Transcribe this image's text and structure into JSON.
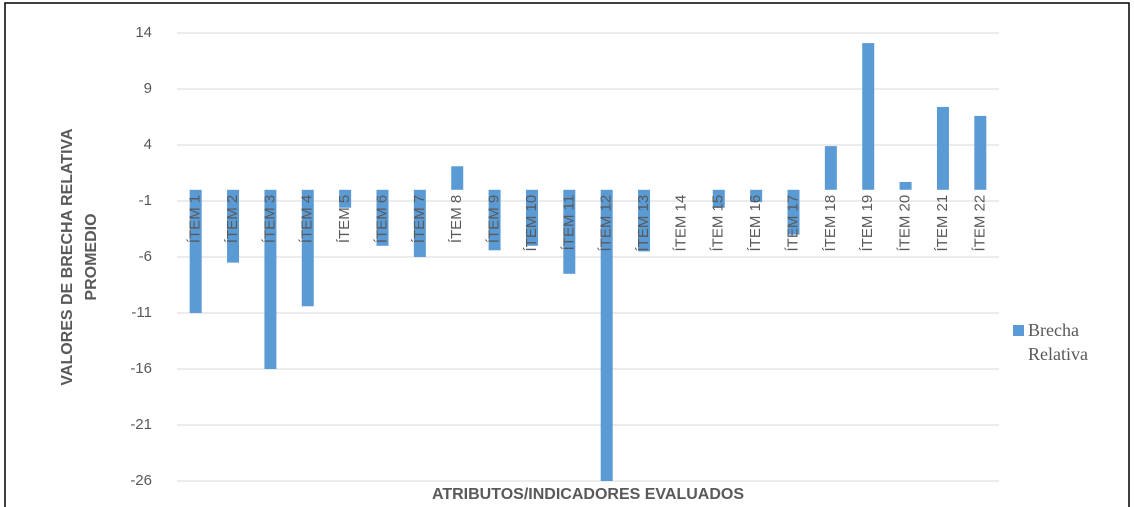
{
  "chart_data": {
    "type": "bar",
    "xlabel": "ATRIBUTOS/INDICADORES EVALUADOS",
    "ylabel": [
      "VALORES DE BRECHA RELATIVA",
      "PROMEDIO"
    ],
    "categories": [
      "ÍTEM 1",
      "ÍTEM 2",
      "ÍTEM 3",
      "ÍTEM 4",
      "ÍTEM 5",
      "ÍTEM 6",
      "ÍTEM 7",
      "ÍTEM 8",
      "ÍTEM 9",
      "ÍTEM 10",
      "ÍTEM 11",
      "ÍTEM 12",
      "ÍTEM 13",
      "ÍTEM 14",
      "ÍTEM 15",
      "ÍTEM 16",
      "ÍTEM 17",
      "ÍTEM 18",
      "ÍTEM 19",
      "ÍTEM 20",
      "ÍTEM 21",
      "ÍTEM 22"
    ],
    "series": [
      {
        "name": "Brecha Relativa",
        "color": "#5b9bd5",
        "values": [
          -11,
          -6.5,
          -16,
          -10.4,
          -1.6,
          -5,
          -6,
          2.1,
          -5.4,
          -5,
          -7.5,
          -26,
          -5.5,
          0,
          -1.6,
          -1.1,
          -4,
          3.9,
          13.1,
          0.7,
          7.4,
          6.6
        ]
      }
    ],
    "ylim": [
      -26,
      14
    ],
    "yticks": [
      14,
      9,
      4,
      -1,
      -6,
      -11,
      -16,
      -21,
      -26
    ],
    "grid": true,
    "legend": "right"
  }
}
